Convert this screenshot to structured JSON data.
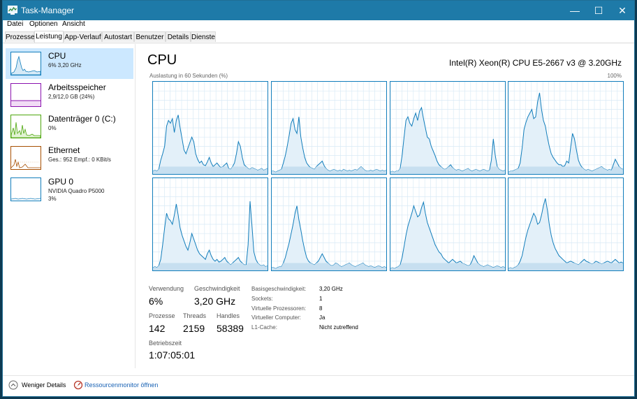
{
  "window": {
    "title": "Task-Manager",
    "minimize": "—",
    "maximize": "☐",
    "close": "✕"
  },
  "menu": [
    "Datei",
    "Optionen",
    "Ansicht"
  ],
  "tabs": [
    "Prozesse",
    "Leistung",
    "App-Verlauf",
    "Autostart",
    "Benutzer",
    "Details",
    "Dienste"
  ],
  "active_tab": "Leistung",
  "sidebar": {
    "items": [
      {
        "title": "CPU",
        "sub": "6% 3,20 GHz",
        "sub2": "",
        "color": "#117dbb"
      },
      {
        "title": "Arbeitsspeicher",
        "sub": "2,9/12,0 GB (24%)",
        "sub2": "",
        "color": "#8b12ae"
      },
      {
        "title": "Datenträger 0 (C:)",
        "sub": "0%",
        "sub2": "",
        "color": "#4da60c"
      },
      {
        "title": "Ethernet",
        "sub": "Ges.: 952 Empf.: 0 KBit/s",
        "sub2": "",
        "color": "#a74f01"
      },
      {
        "title": "GPU 0",
        "sub": "NVIDIA Quadro P5000",
        "sub2": "3%",
        "color": "#117dbb"
      }
    ]
  },
  "main": {
    "title": "CPU",
    "processor": "Intel(R) Xeon(R) CPU E5-2667 v3 @ 3.20GHz",
    "graph_label": "Auslastung in 60 Sekunden (%)",
    "graph_max": "100%"
  },
  "chart_data": {
    "type": "line",
    "title": "Auslastung in 60 Sekunden (%)",
    "ylim": [
      0,
      100
    ],
    "series": [
      {
        "values": [
          3,
          4,
          3,
          5,
          15,
          22,
          30,
          52,
          58,
          55,
          60,
          45,
          58,
          64,
          50,
          38,
          26,
          22,
          28,
          34,
          40,
          35,
          22,
          16,
          12,
          14,
          10,
          9,
          13,
          18,
          12,
          8,
          10,
          12,
          9,
          7,
          8,
          10,
          12,
          6,
          5,
          8,
          12,
          22,
          35,
          30,
          18,
          10,
          8,
          6,
          5,
          7,
          6,
          5,
          4,
          5,
          6,
          4,
          5,
          6
        ]
      },
      {
        "values": [
          3,
          3,
          2,
          3,
          4,
          5,
          12,
          20,
          30,
          42,
          55,
          60,
          48,
          44,
          62,
          40,
          28,
          18,
          12,
          9,
          7,
          6,
          5,
          8,
          10,
          12,
          14,
          9,
          6,
          4,
          3,
          4,
          5,
          4,
          3,
          4,
          3,
          5,
          4,
          3,
          4,
          3,
          4,
          5,
          4,
          6,
          8,
          6,
          4,
          3,
          3,
          4,
          3,
          4,
          5,
          4,
          3,
          4,
          3,
          4
        ]
      },
      {
        "values": [
          2,
          3,
          2,
          3,
          3,
          6,
          20,
          40,
          58,
          62,
          55,
          52,
          60,
          66,
          58,
          68,
          72,
          60,
          50,
          40,
          38,
          30,
          25,
          20,
          14,
          10,
          8,
          6,
          5,
          6,
          8,
          10,
          7,
          5,
          4,
          5,
          4,
          3,
          4,
          5,
          6,
          4,
          3,
          4,
          5,
          4,
          3,
          4,
          5,
          4,
          3,
          4,
          15,
          38,
          20,
          8,
          5,
          4,
          3,
          4
        ]
      },
      {
        "values": [
          2,
          3,
          3,
          4,
          5,
          6,
          12,
          28,
          48,
          56,
          62,
          66,
          70,
          60,
          62,
          78,
          88,
          70,
          58,
          52,
          40,
          30,
          22,
          18,
          15,
          12,
          10,
          10,
          8,
          9,
          14,
          12,
          28,
          44,
          38,
          26,
          15,
          10,
          7,
          5,
          4,
          5,
          4,
          3,
          4,
          5,
          6,
          7,
          8,
          6,
          5,
          4,
          5,
          4,
          10,
          16,
          12,
          8,
          6,
          5
        ]
      },
      {
        "values": [
          3,
          4,
          3,
          5,
          12,
          28,
          46,
          62,
          56,
          54,
          50,
          60,
          72,
          60,
          46,
          38,
          32,
          26,
          22,
          30,
          40,
          34,
          28,
          22,
          18,
          16,
          14,
          12,
          18,
          22,
          16,
          12,
          10,
          12,
          9,
          10,
          12,
          14,
          10,
          8,
          6,
          8,
          10,
          12,
          14,
          10,
          8,
          6,
          6,
          28,
          75,
          48,
          20,
          12,
          8,
          6,
          5,
          6,
          4,
          5
        ]
      },
      {
        "values": [
          3,
          3,
          2,
          3,
          4,
          4,
          8,
          14,
          22,
          30,
          40,
          50,
          62,
          70,
          55,
          44,
          32,
          22,
          14,
          10,
          8,
          7,
          6,
          8,
          10,
          14,
          18,
          14,
          10,
          8,
          6,
          5,
          6,
          8,
          7,
          5,
          4,
          5,
          6,
          7,
          8,
          6,
          5,
          4,
          5,
          6,
          7,
          8,
          6,
          5,
          4,
          5,
          4,
          3,
          4,
          5,
          4,
          3,
          4,
          3
        ]
      },
      {
        "values": [
          2,
          3,
          2,
          3,
          4,
          6,
          14,
          26,
          38,
          48,
          55,
          62,
          70,
          64,
          58,
          60,
          68,
          74,
          62,
          52,
          46,
          40,
          34,
          28,
          24,
          20,
          18,
          14,
          12,
          10,
          8,
          10,
          12,
          10,
          8,
          9,
          10,
          8,
          7,
          6,
          5,
          6,
          10,
          16,
          12,
          8,
          6,
          5,
          4,
          5,
          6,
          5,
          4,
          3,
          4,
          5,
          4,
          3,
          4,
          3
        ]
      },
      {
        "values": [
          2,
          3,
          2,
          3,
          4,
          6,
          10,
          16,
          26,
          36,
          44,
          50,
          56,
          62,
          58,
          50,
          52,
          60,
          70,
          78,
          66,
          50,
          38,
          30,
          24,
          20,
          16,
          14,
          12,
          10,
          8,
          9,
          10,
          9,
          8,
          7,
          6,
          8,
          10,
          12,
          10,
          9,
          8,
          7,
          8,
          10,
          9,
          8,
          7,
          8,
          9,
          10,
          9,
          8,
          10,
          12,
          10,
          8,
          9,
          8
        ]
      }
    ]
  },
  "stats": {
    "usage_label": "Verwendung",
    "usage_value": "6%",
    "speed_label": "Geschwindigkeit",
    "speed_value": "3,20 GHz",
    "processes_label": "Prozesse",
    "processes_value": "142",
    "threads_label": "Threads",
    "threads_value": "2159",
    "handles_label": "Handles",
    "handles_value": "58389",
    "uptime_label": "Betriebszeit",
    "uptime_value": "1:07:05:01"
  },
  "info": [
    {
      "label": "Basisgeschwindigkeit:",
      "value": "3,20 GHz"
    },
    {
      "label": "Sockets:",
      "value": "1"
    },
    {
      "label": "Virtuelle Prozessoren:",
      "value": "8"
    },
    {
      "label": "Virtueller Computer:",
      "value": "Ja"
    },
    {
      "label": "L1-Cache:",
      "value": "Nicht zutreffend"
    }
  ],
  "footer": {
    "fewer_details": "Weniger Details",
    "resource_monitor": "Ressourcenmonitor öffnen"
  },
  "colors": {
    "titlebar": "#1e7aa8",
    "cpu": "#117dbb",
    "memory": "#8b12ae",
    "disk": "#4da60c",
    "ethernet": "#a74f01",
    "link": "#1a63b5"
  }
}
